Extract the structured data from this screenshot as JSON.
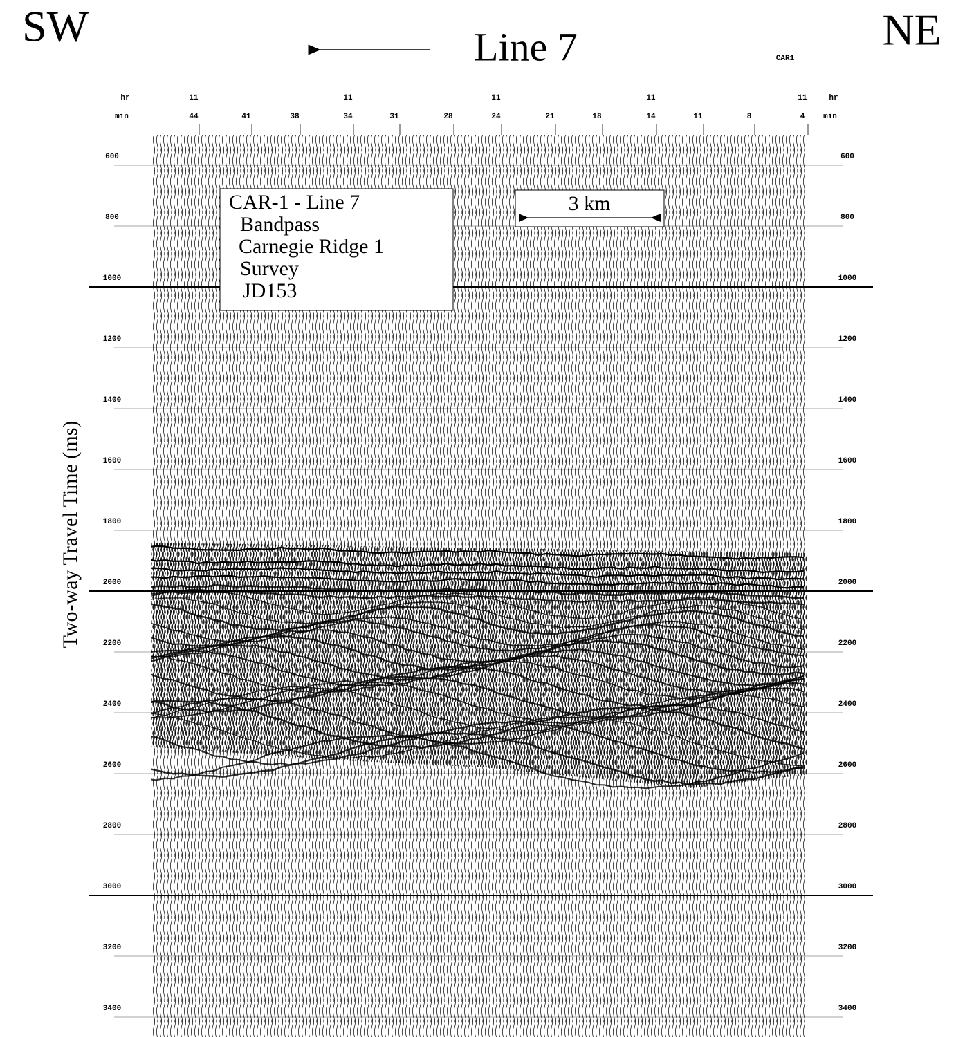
{
  "corners": {
    "left": "SW",
    "right": "NE"
  },
  "title": "Line 7",
  "code": "CAR1",
  "axis_label": "Two-way Travel Time (ms)",
  "time_axis": {
    "hour_label": "hr",
    "minute_label": "min",
    "hours": [
      11,
      null,
      null,
      11,
      null,
      null,
      11,
      null,
      null,
      11,
      null,
      null,
      11
    ],
    "minutes": [
      44,
      41,
      38,
      34,
      31,
      28,
      24,
      21,
      18,
      14,
      11,
      8,
      4
    ]
  },
  "time_ticks": [
    600,
    800,
    1000,
    1200,
    1400,
    1600,
    1800,
    2000,
    2200,
    2400,
    2600,
    2800,
    3000,
    3200,
    3400
  ],
  "info_box": {
    "lines": [
      "CAR-1 - Line 7",
      "Bandpass",
      "Carnegie Ridge 1",
      "Survey",
      "JD153"
    ]
  },
  "scale_bar": "3 km"
}
